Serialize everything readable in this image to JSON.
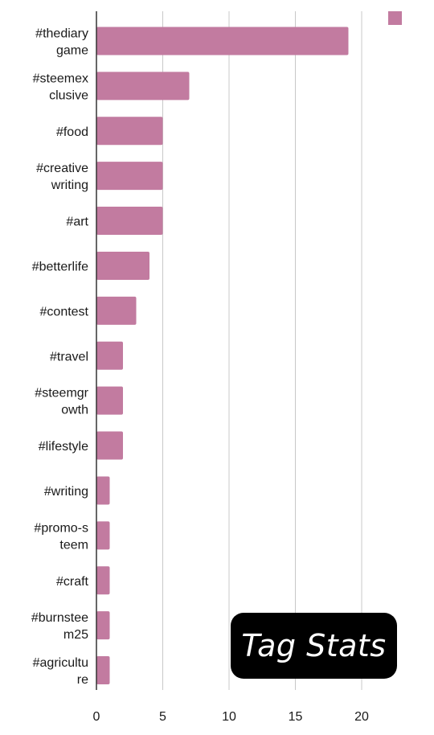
{
  "chart_data": {
    "type": "bar",
    "orientation": "horizontal",
    "categories": [
      [
        "#thediary",
        "game"
      ],
      [
        "#steemex",
        "clusive"
      ],
      [
        "#food"
      ],
      [
        "#creative",
        "writing"
      ],
      [
        "#art"
      ],
      [
        "#betterlife"
      ],
      [
        "#contest"
      ],
      [
        "#travel"
      ],
      [
        "#steemgr",
        "owth"
      ],
      [
        "#lifestyle"
      ],
      [
        "#writing"
      ],
      [
        "#promo-s",
        "teem"
      ],
      [
        "#craft"
      ],
      [
        "#burnstee",
        "m25"
      ],
      [
        "#agricultu",
        "re"
      ]
    ],
    "values": [
      19,
      7,
      5,
      5,
      5,
      4,
      3,
      2,
      2,
      2,
      1,
      1,
      1,
      1,
      1
    ],
    "xlim": [
      0,
      23
    ],
    "xticks": [
      0,
      5,
      10,
      15,
      20
    ],
    "grid": true,
    "legend": {
      "position": "top-right"
    },
    "colors": {
      "bar": "#c27ba0",
      "grid": "#c8c8c8",
      "axis": "#333333"
    }
  },
  "badge": {
    "text": "Tag Stats"
  }
}
